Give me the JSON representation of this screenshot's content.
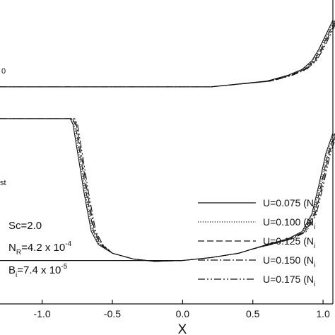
{
  "chart_data": {
    "type": "line",
    "xlabel": "X",
    "xlim": [
      -1.3,
      1.07
    ],
    "ylim": [
      -0.05,
      1.0
    ],
    "x_ticks": [
      -1.0,
      -0.5,
      0.0,
      0.5,
      1.0
    ],
    "x_tick_labels": [
      "-1.0",
      "-0.5",
      "0.0",
      "0.5",
      "1.0"
    ],
    "left_labels": {
      "upper": "0",
      "lower": "st"
    },
    "annotations": {
      "sc": "Sc=2.0",
      "nr_main": "N",
      "nr_sub": "R",
      "nr_value": "=4.2 x 10",
      "nr_exp": "-4",
      "bi_main": "B",
      "bi_sub": "i",
      "bi_value": "=7.4 x 10",
      "bi_exp": "-5"
    },
    "legend_position": "bottom-right",
    "series": [
      {
        "name": "U=0.075 (N",
        "name_sub": "i",
        "dash": "",
        "shift": 0.0
      },
      {
        "name": "U=0.100 (N",
        "name_sub": "i",
        "dash": "1.2,2.2",
        "shift": 0.008
      },
      {
        "name": "U=0.125 (N",
        "name_sub": "i",
        "dash": "9,4",
        "shift": 0.016
      },
      {
        "name": "U=0.150 (N",
        "name_sub": "i",
        "dash": "10,3,2,3",
        "shift": 0.024
      },
      {
        "name": "U=0.175 (N",
        "name_sub": "i",
        "dash": "10,3,2,3,2,3",
        "shift": 0.032
      }
    ],
    "upper_curve": [
      [
        -1.3,
        0.7
      ],
      [
        0.2,
        0.7
      ],
      [
        0.6,
        0.72
      ],
      [
        0.75,
        0.74
      ],
      [
        0.85,
        0.76
      ],
      [
        0.92,
        0.79
      ],
      [
        0.97,
        0.83
      ],
      [
        1.02,
        0.88
      ],
      [
        1.07,
        0.93
      ]
    ],
    "lower_curve": [
      [
        -1.3,
        0.59
      ],
      [
        -0.8,
        0.59
      ],
      [
        -0.78,
        0.57
      ],
      [
        -0.74,
        0.45
      ],
      [
        -0.7,
        0.33
      ],
      [
        -0.65,
        0.2
      ],
      [
        -0.6,
        0.155
      ],
      [
        -0.5,
        0.125
      ],
      [
        -0.35,
        0.105
      ],
      [
        -0.2,
        0.097
      ],
      [
        0.0,
        0.1
      ],
      [
        0.2,
        0.11
      ],
      [
        0.4,
        0.125
      ],
      [
        0.5,
        0.14
      ],
      [
        0.6,
        0.155
      ],
      [
        0.75,
        0.175
      ],
      [
        0.85,
        0.2
      ],
      [
        0.92,
        0.26
      ],
      [
        0.97,
        0.36
      ],
      [
        1.02,
        0.47
      ],
      [
        1.07,
        0.54
      ]
    ],
    "baseline_curve": [
      [
        -1.3,
        0.1
      ],
      [
        -0.3,
        0.1
      ],
      [
        0.0,
        0.1
      ]
    ]
  }
}
